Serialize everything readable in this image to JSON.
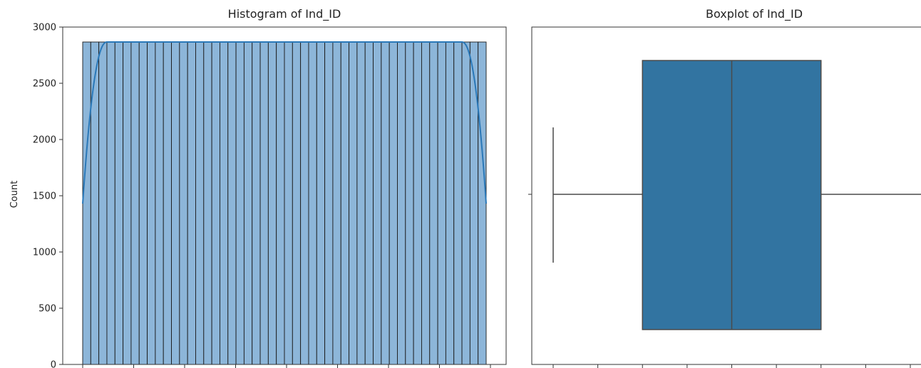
{
  "chart_data": [
    {
      "type": "bar",
      "kind": "histogram",
      "title": "Histogram of Ind_ID",
      "xlabel": "",
      "ylabel": "Count",
      "ylim": [
        0,
        3000
      ],
      "yticks": [
        0,
        500,
        1000,
        1500,
        2000,
        2500,
        3000
      ],
      "xticks_count": 9,
      "xtick_labels_visible": false,
      "bin_count": 50,
      "bin_value": 2867,
      "kde": {
        "plateau": 2867,
        "edge_value": 1430
      },
      "colors": {
        "bar_fill": "#8db6d9",
        "bar_edge": "#1a1a1a",
        "kde_line": "#2a78b8"
      },
      "grid": false
    },
    {
      "type": "boxplot",
      "title": "Boxplot of Ind_ID",
      "xlabel": "",
      "ylabel": "",
      "xlim": [
        -0.05,
        1.08
      ],
      "xticks": [
        0,
        0.125,
        0.25,
        0.375,
        0.5,
        0.625,
        0.75,
        0.875,
        1.0
      ],
      "xtick_labels_visible": false,
      "stats": {
        "whisker_low": 0.0,
        "q1": 0.25,
        "median": 0.5,
        "q3": 0.75,
        "whisker_high": 1.0
      },
      "colors": {
        "box_fill": "#3274a1",
        "line": "#4a4a4a"
      },
      "grid": false
    }
  ]
}
